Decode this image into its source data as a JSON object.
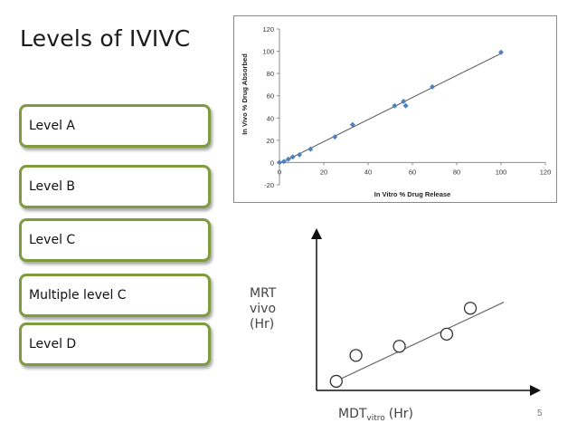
{
  "slide": {
    "title": "Levels of IVIVC",
    "page_number": "5"
  },
  "levels": [
    {
      "label": "Level A"
    },
    {
      "label": "Level B"
    },
    {
      "label": "Level C"
    },
    {
      "label": "Multiple level C"
    },
    {
      "label": "Level D"
    }
  ],
  "colors": {
    "box_border": "#7f9a3f",
    "marker": "#4f81bd"
  },
  "chart_data": [
    {
      "type": "scatter",
      "title": "",
      "xlabel": "In Vitro % Drug Release",
      "ylabel": "In Vivo % Drug Absorbed",
      "xlim": [
        0,
        120
      ],
      "ylim": [
        -20,
        120
      ],
      "xticks": [
        "0",
        "20",
        "40",
        "60",
        "80",
        "100",
        "120"
      ],
      "yticks": [
        "-20",
        "0",
        "20",
        "40",
        "60",
        "80",
        "100",
        "120"
      ],
      "grid": false,
      "legend": "none",
      "trendline": {
        "x": [
          0,
          100
        ],
        "y": [
          -1,
          98
        ]
      },
      "series": [
        {
          "x": [
            0,
            2,
            4,
            6,
            9,
            14,
            25,
            33,
            52,
            56,
            57,
            69,
            100
          ],
          "y": [
            0,
            1,
            3,
            5,
            7,
            12,
            23,
            34,
            51,
            55,
            51,
            68,
            99
          ]
        }
      ]
    },
    {
      "type": "scatter",
      "title": "",
      "xlabel_main": "MDT",
      "xlabel_sub": "vitro",
      "xlabel_unit": "(Hr)",
      "ylabel_lines": [
        "MRT",
        "vivo",
        "(Hr)"
      ],
      "xlim": [
        0,
        10
      ],
      "ylim": [
        0,
        10
      ],
      "grid": false,
      "legend": "none",
      "trendline": {
        "x": [
          0.8,
          9.5
        ],
        "y": [
          0.5,
          5.8
        ]
      },
      "series": [
        {
          "x": [
            1,
            2,
            4.2,
            6.6,
            7.8
          ],
          "y": [
            0.6,
            2.3,
            2.9,
            3.7,
            5.4
          ]
        }
      ]
    }
  ]
}
